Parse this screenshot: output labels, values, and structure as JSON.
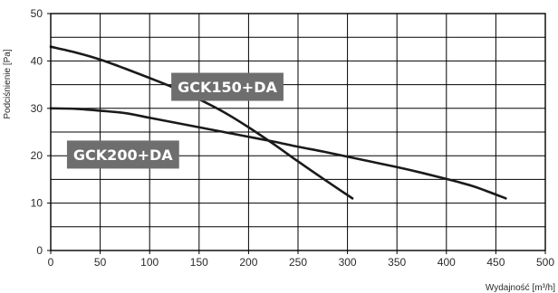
{
  "chart_data": {
    "type": "line",
    "title": "",
    "xlabel": "Wydajność [m³/h]",
    "ylabel": "Podciśnienie [Pa]",
    "xlim": [
      0,
      500
    ],
    "ylim": [
      0,
      50
    ],
    "x_ticks": [
      "0",
      "50",
      "100",
      "150",
      "200",
      "250",
      "300",
      "350",
      "400",
      "450",
      "500"
    ],
    "y_ticks": [
      "0",
      "10",
      "20",
      "30",
      "40",
      "50"
    ],
    "grid": true,
    "colors": {
      "line": "#1a1a1a",
      "label_background": "#6e6e6e",
      "label_text": "#ffffff",
      "grid": "#000000"
    },
    "series": [
      {
        "name": "GCK150+DA",
        "x": [
          0,
          25,
          50,
          75,
          100,
          125,
          150,
          175,
          200,
          225,
          250,
          275,
          305
        ],
        "y": [
          43,
          41.8,
          40.3,
          38.4,
          36.4,
          34.3,
          31.9,
          29.2,
          26,
          22.5,
          18.8,
          15.2,
          11
        ]
      },
      {
        "name": "GCK200+DA",
        "x": [
          0,
          25,
          50,
          75,
          100,
          125,
          150,
          175,
          200,
          225,
          250,
          275,
          300,
          325,
          350,
          375,
          400,
          425,
          440,
          460
        ],
        "y": [
          30,
          29.9,
          29.5,
          29,
          28,
          27,
          26,
          25,
          24,
          23,
          21.9,
          20.9,
          19.8,
          18.7,
          17.6,
          16.4,
          15.1,
          13.7,
          12.6,
          11
        ]
      }
    ]
  }
}
